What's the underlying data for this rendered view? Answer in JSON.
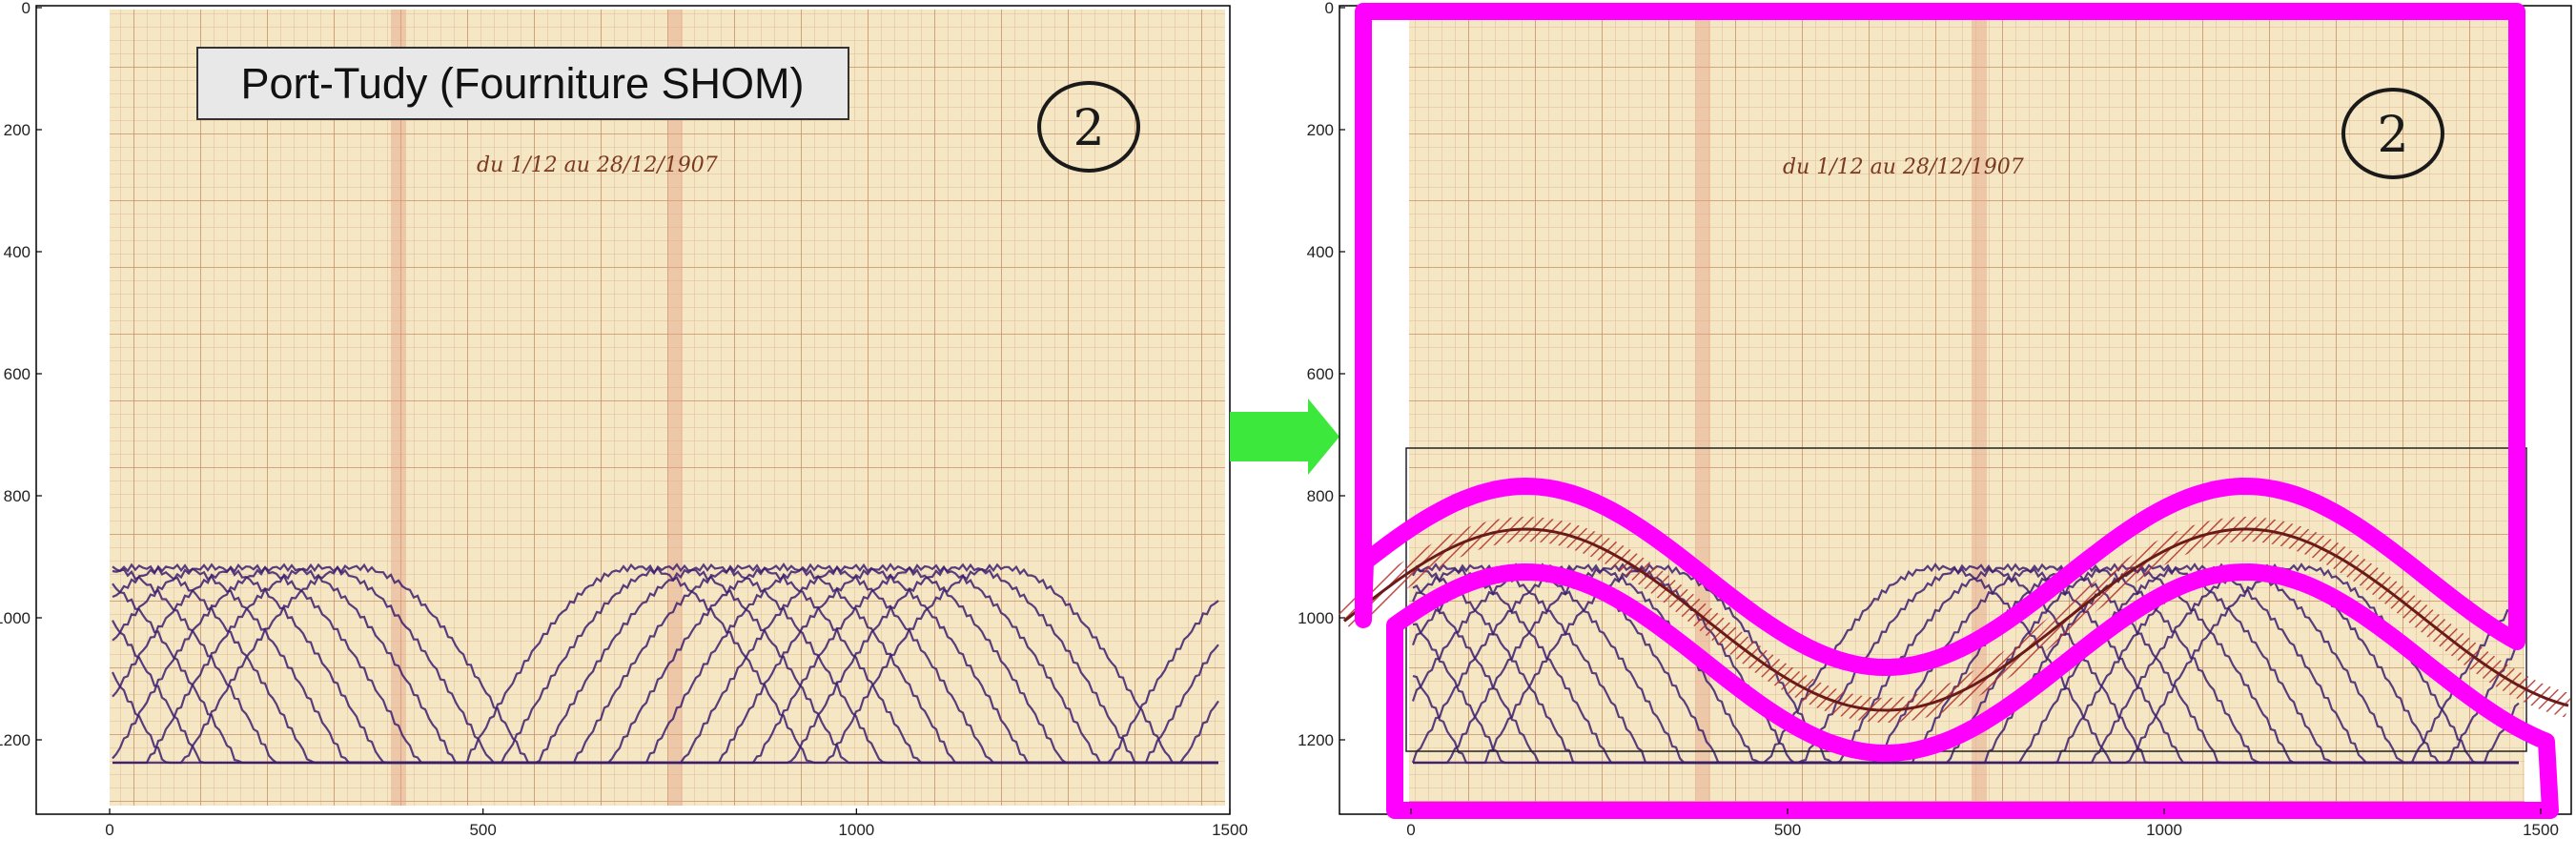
{
  "left_panel": {
    "title": "Port-Tudy (Fourniture SHOM)",
    "sheet_number": "2",
    "handwritten_note": "du 1/12 au 28/12/1907"
  },
  "right_panel": {
    "sheet_number": "2",
    "handwritten_note": "du 1/12 au 28/12/1907"
  },
  "axes": {
    "x_ticks": [
      "0",
      "500",
      "1000",
      "1500"
    ],
    "y_ticks": [
      "0",
      "200",
      "400",
      "600",
      "800",
      "1000",
      "1200"
    ]
  },
  "colors": {
    "paper": "#f5e6c4",
    "grid": "#c98e6a",
    "trace": "#3b1f6e",
    "mask": "#ff00ff",
    "arrow": "#3de83d",
    "hatch": "#b0302a"
  },
  "icons": {
    "arrow": "right-arrow-icon"
  }
}
